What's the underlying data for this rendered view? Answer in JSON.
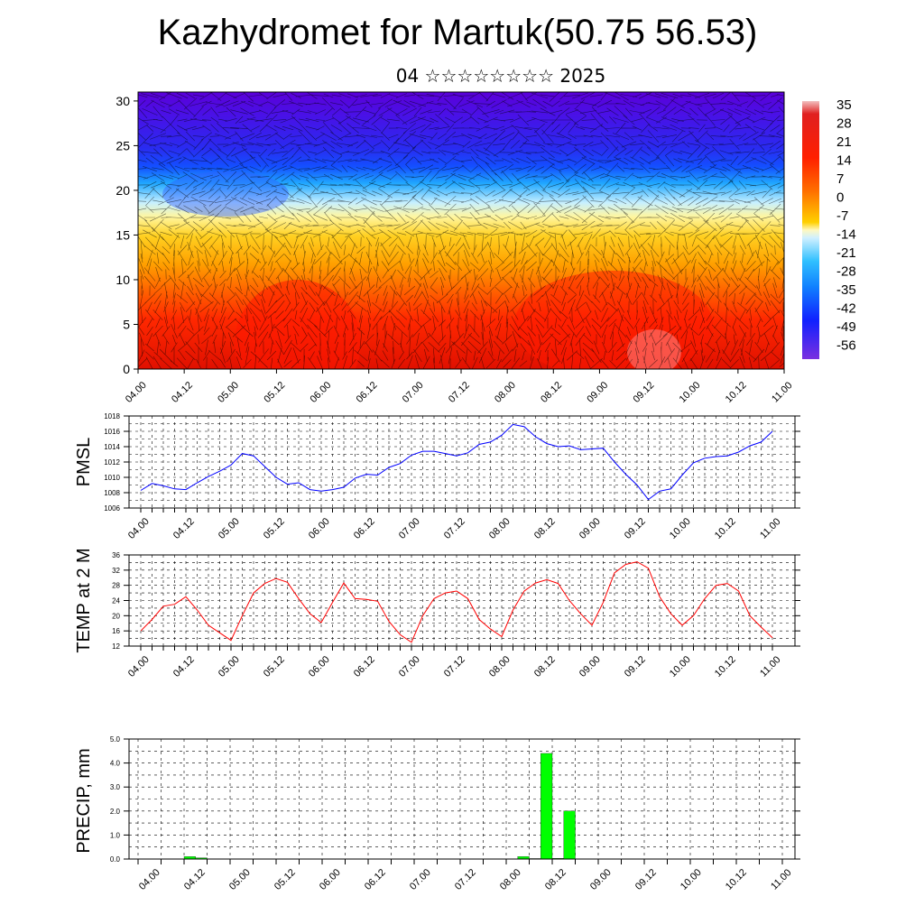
{
  "title": "Kazhydromet for Martuk(50.75 56.53)",
  "subtitle": "04 ☆☆☆☆☆☆☆☆ 2025",
  "time_labels": [
    "04.00",
    "04.12",
    "05.00",
    "05.12",
    "06.00",
    "06.12",
    "07.00",
    "07.12",
    "08.00",
    "08.12",
    "09.00",
    "09.12",
    "10.00",
    "10.12",
    "11.00"
  ],
  "chart_data": [
    {
      "type": "heatmap",
      "title": "",
      "xlabel": "",
      "ylabel": "",
      "x": [
        "04.00",
        "04.12",
        "05.00",
        "05.12",
        "06.00",
        "06.12",
        "07.00",
        "07.12",
        "08.00",
        "08.12",
        "09.00",
        "09.12",
        "10.00",
        "10.12",
        "11.00"
      ],
      "y_ticks": [
        0,
        5,
        10,
        15,
        20,
        25,
        30
      ],
      "ylim": [
        0,
        31
      ],
      "colorbar": {
        "labels": [
          "35",
          "28",
          "21",
          "14",
          "7",
          "0",
          "-7",
          "-14",
          "-21",
          "-28",
          "-35",
          "-42",
          "-49",
          "-56"
        ],
        "range": [
          -60,
          40
        ]
      },
      "overlay": "wind direction streaks",
      "description_levels_by_height": "warm (red) near surface, yellow around 12-17, blue/cyan 18-22, violet above 25"
    },
    {
      "type": "line",
      "ylabel": "PMSL",
      "ylim": [
        1006,
        1018
      ],
      "y_ticks": [
        1006,
        1008,
        1010,
        1012,
        1014,
        1016,
        1018
      ],
      "x": [
        "04.00",
        "04.03",
        "04.06",
        "04.09",
        "04.12",
        "04.15",
        "04.18",
        "04.21",
        "05.00",
        "05.03",
        "05.06",
        "05.09",
        "05.12",
        "05.15",
        "05.18",
        "05.21",
        "06.00",
        "06.03",
        "06.06",
        "06.09",
        "06.12",
        "06.15",
        "06.18",
        "06.21",
        "07.00",
        "07.03",
        "07.06",
        "07.09",
        "07.12",
        "07.15",
        "07.18",
        "07.21",
        "08.00",
        "08.03",
        "08.06",
        "08.09",
        "08.12",
        "08.15",
        "08.18",
        "08.21",
        "09.00",
        "09.03",
        "09.06",
        "09.09",
        "09.12",
        "09.15",
        "09.18",
        "09.21",
        "10.00",
        "10.03",
        "10.06",
        "10.09",
        "10.12",
        "10.15",
        "10.18",
        "10.21",
        "11.00"
      ],
      "series": [
        {
          "color": "#0000ff",
          "values": [
            1008.3,
            1009.2,
            1008.9,
            1008.5,
            1008.4,
            1009.3,
            1010.1,
            1010.8,
            1011.6,
            1013.1,
            1012.8,
            1011.4,
            1010.0,
            1009.1,
            1009.3,
            1008.4,
            1008.2,
            1008.4,
            1008.7,
            1009.9,
            1010.4,
            1010.3,
            1011.3,
            1011.8,
            1012.9,
            1013.4,
            1013.4,
            1013.1,
            1012.8,
            1013.2,
            1014.3,
            1014.6,
            1015.5,
            1016.9,
            1016.6,
            1015.3,
            1014.4,
            1014.0,
            1014.1,
            1013.6,
            1013.7,
            1013.8,
            1012.0,
            1010.4,
            1009.0,
            1007.1,
            1008.2,
            1008.5,
            1010.3,
            1011.9,
            1012.5,
            1012.7,
            1012.8,
            1013.3,
            1014.1,
            1014.6,
            1016.0
          ]
        }
      ]
    },
    {
      "type": "line",
      "ylabel": "TEMP at 2 M",
      "ylim": [
        12,
        36
      ],
      "y_ticks": [
        12,
        16,
        20,
        24,
        28,
        32,
        36
      ],
      "x": [
        "04.00",
        "04.03",
        "04.06",
        "04.09",
        "04.12",
        "04.15",
        "04.18",
        "04.21",
        "05.00",
        "05.03",
        "05.06",
        "05.09",
        "05.12",
        "05.15",
        "05.18",
        "05.21",
        "06.00",
        "06.03",
        "06.06",
        "06.09",
        "06.12",
        "06.15",
        "06.18",
        "06.21",
        "07.00",
        "07.03",
        "07.06",
        "07.09",
        "07.12",
        "07.15",
        "07.18",
        "07.21",
        "08.00",
        "08.03",
        "08.06",
        "08.09",
        "08.12",
        "08.15",
        "08.18",
        "08.21",
        "09.00",
        "09.03",
        "09.06",
        "09.09",
        "09.12",
        "09.15",
        "09.18",
        "09.21",
        "10.00",
        "10.03",
        "10.06",
        "10.09",
        "10.12",
        "10.15",
        "10.18",
        "10.21",
        "11.00"
      ],
      "series": [
        {
          "color": "#ff0000",
          "values": [
            16.0,
            19.0,
            22.5,
            23.0,
            25.0,
            21.5,
            17.5,
            15.5,
            13.5,
            20.0,
            26.0,
            28.5,
            29.8,
            28.8,
            24.5,
            20.5,
            18.2,
            23.5,
            28.6,
            24.5,
            24.3,
            23.8,
            18.5,
            15.0,
            13.0,
            20.0,
            24.5,
            26.0,
            26.5,
            24.5,
            19.0,
            16.5,
            14.5,
            21.5,
            26.5,
            28.6,
            29.5,
            28.5,
            24.0,
            20.5,
            17.5,
            23.5,
            31.3,
            33.5,
            34.2,
            32.5,
            25.0,
            20.5,
            17.5,
            20.0,
            24.5,
            28.0,
            28.5,
            26.5,
            20.0,
            17.0,
            14.2
          ]
        }
      ]
    },
    {
      "type": "bar",
      "ylabel": "PRECIP, mm",
      "ylim": [
        0,
        5
      ],
      "y_tick_labels": [
        "0.0",
        "1.0",
        "2.0",
        "3.0",
        "4.0",
        "5.0"
      ],
      "bins_per_day": 8,
      "values": [
        0,
        0,
        0,
        0,
        0.1,
        0.05,
        0,
        0,
        0,
        0,
        0,
        0,
        0,
        0,
        0,
        0,
        0,
        0,
        0,
        0,
        0,
        0,
        0,
        0,
        0,
        0,
        0,
        0,
        0,
        0,
        0,
        0,
        0,
        0.1,
        0.02,
        4.4,
        0.03,
        2.0,
        0,
        0,
        0,
        0,
        0,
        0,
        0,
        0,
        0,
        0,
        0,
        0,
        0,
        0,
        0,
        0,
        0,
        0
      ],
      "bar_color": "#00ff00"
    }
  ]
}
